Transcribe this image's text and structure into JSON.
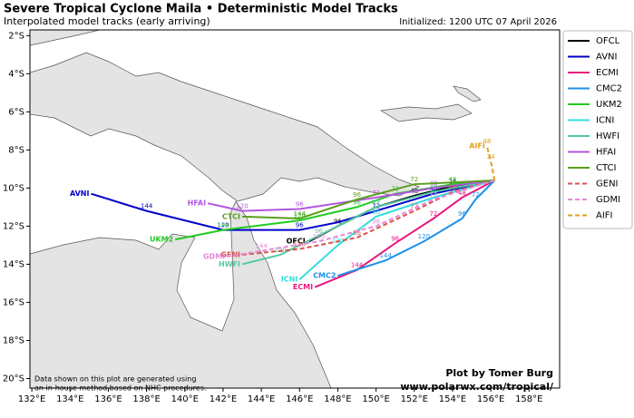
{
  "chart_data": {
    "type": "track-map",
    "title": "Severe Tropical Cyclone Maila • Deterministic Model Tracks",
    "subtitle": "Interpolated model tracks (early arriving)",
    "init": "Initialized: 1200 UTC 07 April 2026",
    "note": [
      "Data shown on this plot are generated using",
      "an in-house method based on NHC procedures."
    ],
    "credit": "Plot by Tomer Burg",
    "url": "www.polarwx.com/tropical/",
    "legend": "upper right outside",
    "xlim": [
      131.9,
      159.6
    ],
    "ylim": [
      -20.5,
      -1.7
    ],
    "xticks": [
      {
        "value": 132,
        "label": "132°E"
      },
      {
        "value": 134,
        "label": "134°E"
      },
      {
        "value": 136,
        "label": "136°E"
      },
      {
        "value": 138,
        "label": "138°E"
      },
      {
        "value": 140,
        "label": "140°E"
      },
      {
        "value": 142,
        "label": "142°E"
      },
      {
        "value": 144,
        "label": "144°E"
      },
      {
        "value": 146,
        "label": "146°E"
      },
      {
        "value": 148,
        "label": "148°E"
      },
      {
        "value": 150,
        "label": "150°E"
      },
      {
        "value": 152,
        "label": "152°E"
      },
      {
        "value": 154,
        "label": "154°E"
      },
      {
        "value": 156,
        "label": "156°E"
      },
      {
        "value": 158,
        "label": "158°E"
      }
    ],
    "yticks": [
      {
        "value": -2,
        "label": "2°S"
      },
      {
        "value": -4,
        "label": "4°S"
      },
      {
        "value": -6,
        "label": "6°S"
      },
      {
        "value": -8,
        "label": "8°S"
      },
      {
        "value": -10,
        "label": "10°S"
      },
      {
        "value": -12,
        "label": "12°S"
      },
      {
        "value": -14,
        "label": "14°S"
      },
      {
        "value": -16,
        "label": "16°S"
      },
      {
        "value": -18,
        "label": "18°S"
      },
      {
        "value": -20,
        "label": "20°S"
      }
    ],
    "series": [
      {
        "name": "OFCL",
        "color": "#000000",
        "dash": false,
        "lon": [
          156.2,
          154,
          152,
          150,
          148,
          146.5
        ],
        "lat": [
          -9.6,
          -9.9,
          -10.4,
          -11,
          -12,
          -12.8
        ],
        "hours": [
          null,
          24,
          48,
          72,
          96,
          null
        ]
      },
      {
        "name": "AVNI",
        "color": "#0000cc",
        "dash": false,
        "lon": [
          156.2,
          153,
          150,
          148,
          146,
          142,
          138,
          135.1
        ],
        "lat": [
          -9.6,
          -10.3,
          -11.2,
          -11.8,
          -12.2,
          -12.2,
          -11.2,
          -10.3
        ],
        "hours": [
          null,
          48,
          72,
          null,
          96,
          120,
          144,
          null
        ]
      },
      {
        "name": "ECMI",
        "color": "#e8177d",
        "dash": false,
        "lon": [
          156.2,
          154.5,
          153,
          151,
          149,
          146.8
        ],
        "lat": [
          -9.6,
          -10.5,
          -11.6,
          -12.9,
          -14.3,
          -15.2
        ],
        "hours": [
          null,
          48,
          72,
          96,
          144,
          null
        ]
      },
      {
        "name": "CMC2",
        "color": "#1e8fe8",
        "dash": false,
        "lon": [
          156.2,
          155.2,
          154.5,
          152.5,
          150.5,
          148
        ],
        "lat": [
          -9.6,
          -10.6,
          -11.6,
          -12.8,
          -13.8,
          -14.6
        ],
        "hours": [
          null,
          72,
          96,
          120,
          144,
          null
        ]
      },
      {
        "name": "UKM2",
        "color": "#22cc22",
        "dash": false,
        "lon": [
          156.2,
          154,
          151,
          149,
          146,
          142,
          139.5
        ],
        "lat": [
          -9.6,
          -9.8,
          -10.3,
          -11,
          -11.7,
          -12.2,
          -12.7
        ],
        "hours": [
          null,
          48,
          72,
          96,
          120,
          144,
          null
        ]
      },
      {
        "name": "ICNI",
        "color": "#33dddd",
        "dash": false,
        "lon": [
          156.2,
          153,
          150,
          148,
          146
        ],
        "lat": [
          -9.6,
          -10.5,
          -11.5,
          -13,
          -14.8
        ],
        "hours": [
          null,
          72,
          96,
          120,
          null
        ]
      },
      {
        "name": "HWFI",
        "color": "#55c8a0",
        "dash": false,
        "lon": [
          156.2,
          153,
          150,
          147,
          145,
          143
        ],
        "lat": [
          -9.6,
          -10.2,
          -11,
          -12.5,
          -13.5,
          -14
        ],
        "hours": [
          null,
          48,
          72,
          96,
          120,
          null
        ]
      },
      {
        "name": "HFAI",
        "color": "#b455e0",
        "dash": false,
        "lon": [
          156.2,
          153,
          150,
          146,
          143,
          141.2
        ],
        "lat": [
          -9.6,
          -10,
          -10.5,
          -11.1,
          -11.2,
          -10.8
        ],
        "hours": [
          null,
          48,
          72,
          96,
          120,
          null
        ]
      },
      {
        "name": "CTCI",
        "color": "#5a9e1c",
        "dash": false,
        "lon": [
          156.2,
          152,
          149,
          146,
          143
        ],
        "lat": [
          -9.6,
          -9.8,
          -10.6,
          -11.6,
          -11.5
        ],
        "hours": [
          null,
          72,
          96,
          144,
          null
        ]
      },
      {
        "name": "GENI",
        "color": "#d9534f",
        "dash": true,
        "lon": [
          156.2,
          154,
          152,
          149,
          146,
          143
        ],
        "lat": [
          -9.6,
          -10.2,
          -11.2,
          -12.6,
          -13.2,
          -13.5
        ],
        "hours": [
          null,
          48,
          72,
          96,
          120,
          null
        ]
      },
      {
        "name": "GDMI",
        "color": "#e58ad8",
        "dash": true,
        "lon": [
          156.2,
          153,
          150,
          147,
          144,
          142.2
        ],
        "lat": [
          -9.6,
          -10.6,
          -12,
          -12.8,
          -13.3,
          -13.6
        ],
        "hours": [
          null,
          72,
          96,
          120,
          144,
          null
        ]
      },
      {
        "name": "AIFI",
        "color": "#e0a020",
        "dash": true,
        "lon": [
          156.2,
          156,
          155.8
        ],
        "lat": [
          -9.6,
          -8.6,
          -7.8
        ],
        "hours": [
          null,
          24,
          48
        ]
      }
    ]
  }
}
